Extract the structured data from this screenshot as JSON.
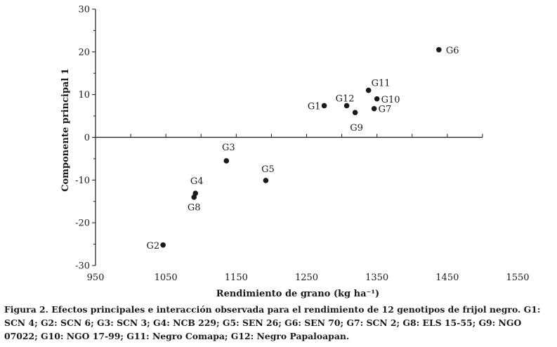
{
  "chart_data": {
    "type": "scatter",
    "xlabel": "Rendimiento de grano (kg ha⁻¹)",
    "ylabel": "Componente principal 1",
    "xlim": [
      950,
      1550
    ],
    "ylim": [
      -30,
      30
    ],
    "x_ticks": [
      950,
      1050,
      1150,
      1250,
      1350,
      1450,
      1550
    ],
    "y_ticks": [
      30,
      20,
      10,
      0,
      -10,
      -20,
      -30
    ],
    "grid": false,
    "points": [
      {
        "label": "G1",
        "x": 1275,
        "y": 7.4
      },
      {
        "label": "G2",
        "x": 1046,
        "y": -25.2
      },
      {
        "label": "G3",
        "x": 1136,
        "y": -5.5
      },
      {
        "label": "G4",
        "x": 1092,
        "y": -13.1
      },
      {
        "label": "G5",
        "x": 1192,
        "y": -10.1
      },
      {
        "label": "G6",
        "x": 1438,
        "y": 20.5
      },
      {
        "label": "G7",
        "x": 1346,
        "y": 6.7
      },
      {
        "label": "G8",
        "x": 1090,
        "y": -14.0
      },
      {
        "label": "G9",
        "x": 1319,
        "y": 5.8
      },
      {
        "label": "G10",
        "x": 1350,
        "y": 9.0
      },
      {
        "label": "G11",
        "x": 1338,
        "y": 11.0
      },
      {
        "label": "G12",
        "x": 1307,
        "y": 7.4
      }
    ]
  },
  "caption": "Figura 2. Efectos principales e interacción observada para el rendimiento de 12 genotipos de frijol negro. G1: SCN 4; G2: SCN 6; G3: SCN 3; G4: NCB 229; G5: SEN 26; G6: SEN 70; G7: SCN 2; G8: ELS 15-55; G9: NGO 07022; G10: NGO 17-99; G11: Negro Comapa; G12: Negro Papaloapan.",
  "colors": {
    "ink": "#1a1a1a",
    "background": "#ffffff"
  }
}
